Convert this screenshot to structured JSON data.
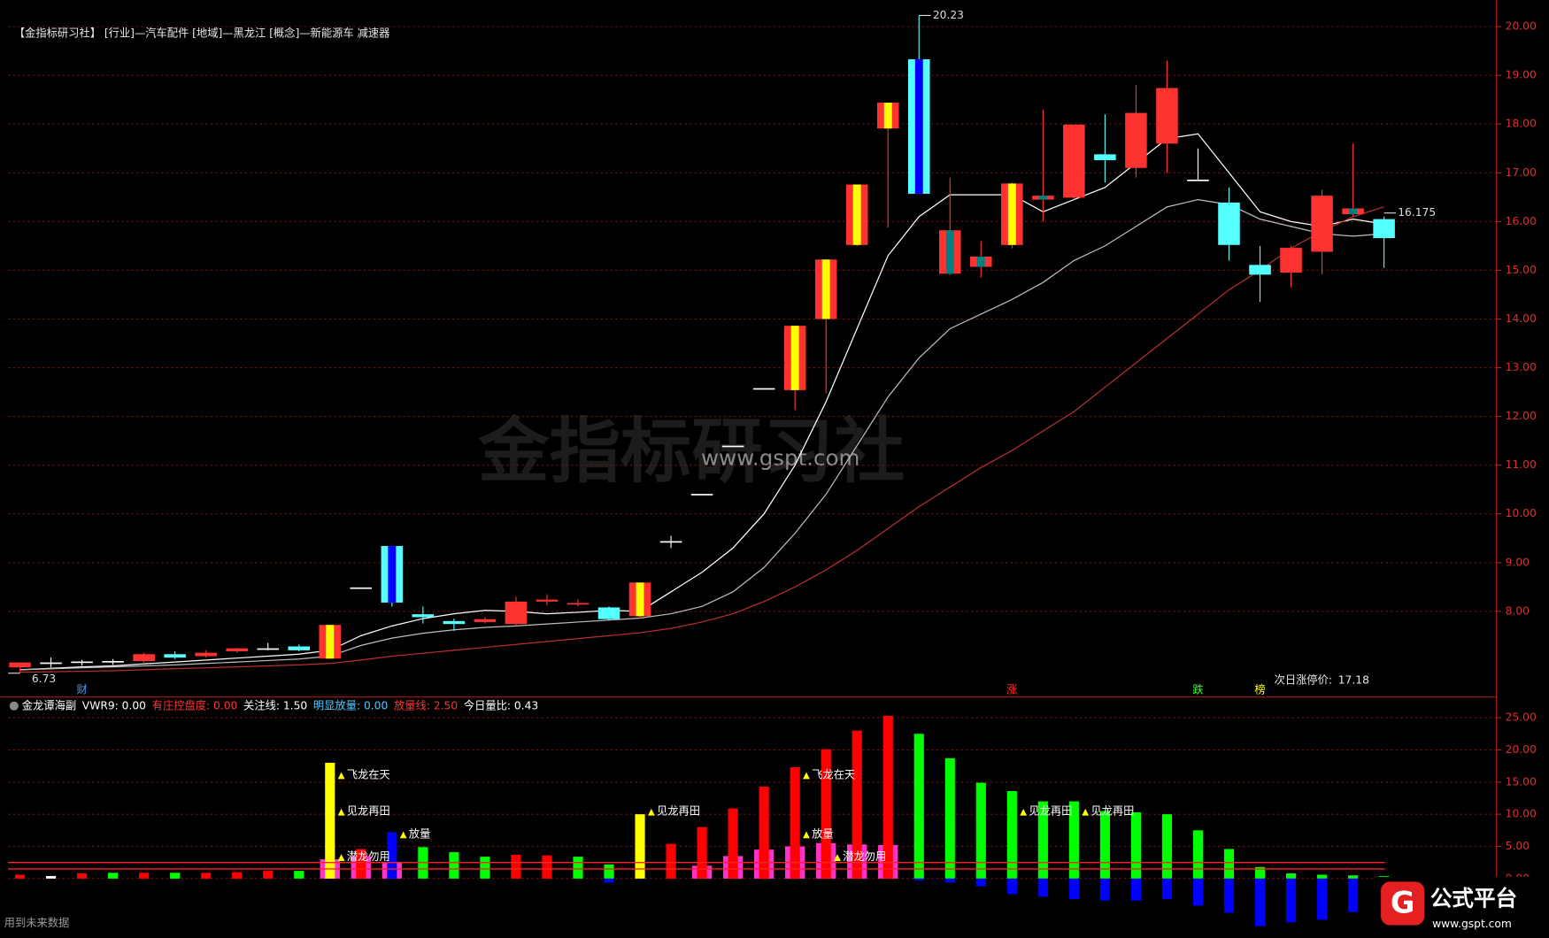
{
  "chart_data": [
    {
      "type": "candlestick",
      "title": "【金指标研习社】 [行业]—汽车配件 [地域]—黑龙江 [概念]—新能源车 减速器",
      "open": [
        6.85,
        6.95,
        6.95,
        6.97,
        6.98,
        7.12,
        7.08,
        7.18,
        7.24,
        7.28,
        7.03,
        8.49,
        9.34,
        7.94,
        7.8,
        7.78,
        7.74,
        8.2,
        8.14,
        8.08,
        7.9,
        9.44,
        10.41,
        11.4,
        12.58,
        12.54,
        14.0,
        15.52,
        17.91,
        19.33,
        15.82,
        15.28,
        15.52,
        16.53,
        16.49,
        17.38,
        17.1,
        17.6,
        16.86,
        16.39,
        15.11,
        14.95,
        15.38,
        16.27,
        16.05
      ],
      "high": [
        6.95,
        7.05,
        7.0,
        7.02,
        7.15,
        7.18,
        7.2,
        7.25,
        7.35,
        7.32,
        7.72,
        8.49,
        9.34,
        8.1,
        7.85,
        7.88,
        8.3,
        8.35,
        8.25,
        8.1,
        8.59,
        9.55,
        10.41,
        11.4,
        12.58,
        13.86,
        15.22,
        16.76,
        18.44,
        20.23,
        16.9,
        15.6,
        16.8,
        18.3,
        17.99,
        18.2,
        18.8,
        19.3,
        17.5,
        16.7,
        15.5,
        15.5,
        16.65,
        17.6,
        16.1
      ],
      "low": [
        6.73,
        6.85,
        6.88,
        6.9,
        6.95,
        7.02,
        7.05,
        7.15,
        7.2,
        7.18,
        7.03,
        8.49,
        8.1,
        7.75,
        7.6,
        7.75,
        7.7,
        8.12,
        8.1,
        7.82,
        7.85,
        9.3,
        10.41,
        11.4,
        12.58,
        12.13,
        12.48,
        15.5,
        15.88,
        16.57,
        14.9,
        14.85,
        15.45,
        16.0,
        16.45,
        16.8,
        16.9,
        17.0,
        16.86,
        15.2,
        14.35,
        14.65,
        14.92,
        16.1,
        15.05
      ],
      "close": [
        6.95,
        6.95,
        6.97,
        6.98,
        7.12,
        7.05,
        7.15,
        7.24,
        7.24,
        7.2,
        7.72,
        8.49,
        8.18,
        7.88,
        7.74,
        7.84,
        8.2,
        8.24,
        8.17,
        7.84,
        8.59,
        9.44,
        10.41,
        11.4,
        12.58,
        13.86,
        15.22,
        16.76,
        18.44,
        16.57,
        14.93,
        15.07,
        16.78,
        16.45,
        17.99,
        17.26,
        18.23,
        18.74,
        16.86,
        15.52,
        14.91,
        15.46,
        16.53,
        16.15,
        15.66
      ],
      "colors": [
        "#ff3232",
        "#ffffff",
        "#ffffff",
        "#ffffff",
        "#ff3232",
        "#54ffff",
        "#ff3232",
        "#ff3232",
        "#ffffff",
        "#54ffff",
        "#ff3232",
        "#ffffff",
        "#54ffff",
        "#54ffff",
        "#54ffff",
        "#ff3232",
        "#ff3232",
        "#ff3232",
        "#ff3232",
        "#54ffff",
        "#ff3232",
        "#ffffff",
        "#ffffff",
        "#ffffff",
        "#ffffff",
        "#ff3232",
        "#ff3232",
        "#ff3232",
        "#ff3232",
        "#54ffff",
        "#ff3232",
        "#ff3232",
        "#ff3232",
        "#ff3232",
        "#ff3232",
        "#54ffff",
        "#ff3232",
        "#ff3232",
        "#ffffff",
        "#54ffff",
        "#54ffff",
        "#ff3232",
        "#ff3232",
        "#ff3232",
        "#54ffff"
      ],
      "stripes": [
        null,
        null,
        null,
        null,
        null,
        null,
        null,
        null,
        null,
        null,
        "#ffff00",
        null,
        "#0000ff",
        null,
        null,
        null,
        null,
        null,
        null,
        null,
        "#ffff00",
        null,
        null,
        null,
        null,
        "#ffff00",
        "#ffff00",
        "#ffff00",
        "#ffff00",
        "#0000ff",
        "#008080",
        "#008080",
        "#ffff00",
        "#008080",
        null,
        null,
        null,
        null,
        null,
        null,
        null,
        null,
        null,
        "#008080",
        null
      ],
      "lines": [
        {
          "color": "#ffffff",
          "values": [
            6.8,
            6.83,
            6.86,
            6.88,
            6.92,
            6.96,
            7.0,
            7.04,
            7.08,
            7.12,
            7.2,
            7.5,
            7.7,
            7.85,
            7.95,
            8.02,
            8.0,
            7.95,
            7.98,
            8.02,
            8.0,
            8.4,
            8.8,
            9.3,
            10.0,
            11.0,
            12.3,
            13.8,
            15.3,
            16.1,
            16.55,
            16.55,
            16.55,
            16.2,
            16.45,
            16.7,
            17.2,
            17.7,
            17.8,
            17.0,
            16.2,
            16.0,
            15.9,
            16.05,
            15.95
          ]
        },
        {
          "color": "#bdbdbd",
          "values": [
            6.8,
            6.82,
            6.84,
            6.86,
            6.88,
            6.9,
            6.93,
            6.96,
            6.99,
            7.02,
            7.08,
            7.3,
            7.45,
            7.55,
            7.62,
            7.67,
            7.7,
            7.74,
            7.78,
            7.82,
            7.86,
            7.95,
            8.1,
            8.4,
            8.9,
            9.6,
            10.4,
            11.4,
            12.4,
            13.2,
            13.8,
            14.1,
            14.4,
            14.75,
            15.2,
            15.5,
            15.9,
            16.3,
            16.45,
            16.35,
            16.05,
            15.9,
            15.75,
            15.7,
            15.75
          ]
        },
        {
          "color": "#b83030",
          "values": [
            6.75,
            6.76,
            6.77,
            6.78,
            6.8,
            6.82,
            6.84,
            6.86,
            6.88,
            6.9,
            6.93,
            7.0,
            7.08,
            7.14,
            7.2,
            7.26,
            7.32,
            7.38,
            7.44,
            7.5,
            7.56,
            7.65,
            7.78,
            7.95,
            8.2,
            8.5,
            8.85,
            9.25,
            9.7,
            10.15,
            10.55,
            10.95,
            11.3,
            11.7,
            12.1,
            12.6,
            13.1,
            13.6,
            14.1,
            14.6,
            15.0,
            15.45,
            15.8,
            16.1,
            16.3
          ]
        }
      ],
      "annotations": [
        {
          "value": 20.23,
          "index": 29
        },
        {
          "value": 6.73,
          "index": 0
        },
        {
          "value": 16.175,
          "index": 44
        }
      ],
      "markers": [
        {
          "text": "财",
          "index": 2,
          "color": "#3aa0ff"
        },
        {
          "text": "涨",
          "index": 32,
          "color": "#ff3232"
        },
        {
          "text": "跌",
          "index": 38,
          "color": "#33ff33"
        },
        {
          "text": "榜",
          "index": 40,
          "color": "#ffff00"
        }
      ],
      "note": {
        "text": "次日涨停价:",
        "value": 17.18
      },
      "ylim": [
        6.26,
        20.385
      ],
      "yticks": [
        {
          "value": 8,
          "label": "8.00"
        },
        {
          "value": 9,
          "label": "9.00"
        },
        {
          "value": 10,
          "label": "10.00"
        },
        {
          "value": 11,
          "label": "11.00"
        },
        {
          "value": 12,
          "label": "12.00"
        },
        {
          "value": 13,
          "label": "13.00"
        },
        {
          "value": 14,
          "label": "14.00"
        },
        {
          "value": 15,
          "label": "15.00"
        },
        {
          "value": 16,
          "label": "16.00"
        },
        {
          "value": 17,
          "label": "17.00"
        },
        {
          "value": 18,
          "label": "18.00"
        },
        {
          "value": 19,
          "label": "19.00"
        },
        {
          "value": 20,
          "label": "20.00"
        }
      ],
      "grid": true
    },
    {
      "type": "bar",
      "header": [
        {
          "text": "金龙谭海副",
          "color": "#ffffff"
        },
        {
          "text": "VWR9: 0.00",
          "color": "#ffffff"
        },
        {
          "text": "有庄控盘度: 0.00",
          "color": "#ff3232"
        },
        {
          "text": "关注线: 1.50",
          "color": "#ffffff"
        },
        {
          "text": "明显放量: 0.00",
          "color": "#54c8ff"
        },
        {
          "text": "放量线: 2.50",
          "color": "#ff3232"
        },
        {
          "text": "今日量比: 0.43",
          "color": "#ffffff"
        }
      ],
      "series": [
        {
          "color": "#ff33cc",
          "values": [
            null,
            null,
            null,
            null,
            null,
            null,
            null,
            null,
            null,
            null,
            3.0,
            3.5,
            2.5,
            null,
            null,
            null,
            null,
            null,
            null,
            null,
            null,
            null,
            2.0,
            3.5,
            4.5,
            5.0,
            5.5,
            5.3,
            5.2,
            null,
            null,
            null,
            null,
            null,
            null,
            null,
            null,
            null,
            null,
            null,
            null,
            null,
            null,
            null,
            null
          ]
        },
        {
          "colors": [
            "#ff0000",
            "#ffffff",
            "#ff0000",
            "#00ff00",
            "#ff0000",
            "#00ff00",
            "#ff0000",
            "#ff0000",
            "#ff0000",
            "#00ff00",
            "#ffff00",
            "#ff0000",
            "#0000ff",
            "#00ff00",
            "#00ff00",
            "#00ff00",
            "#ff0000",
            "#ff0000",
            "#00ff00",
            "#00ff00",
            "#ffff00",
            "#ff0000",
            "#ff0000",
            "#ff0000",
            "#ff0000",
            "#ff0000",
            "#ff0000",
            "#ff0000",
            "#ff0000",
            "#00ff00",
            "#00ff00",
            "#00ff00",
            "#00ff00",
            "#00ff00",
            "#00ff00",
            "#00ff00",
            "#00ff00",
            "#00ff00",
            "#00ff00",
            "#00ff00",
            "#00ff00",
            "#00ff00",
            "#00ff00",
            "#00ff00",
            "#00ff00"
          ],
          "values": [
            0.6,
            0.4,
            0.8,
            0.9,
            0.9,
            0.9,
            0.9,
            1.0,
            1.2,
            1.2,
            18.0,
            4.6,
            7.2,
            4.9,
            4.1,
            3.4,
            3.7,
            3.6,
            3.4,
            2.2,
            10.0,
            5.4,
            8.0,
            10.9,
            14.3,
            17.3,
            20.1,
            23.0,
            25.3,
            22.5,
            18.7,
            14.9,
            13.6,
            12.0,
            12.0,
            10.5,
            10.3,
            10.0,
            7.5,
            4.6,
            1.8,
            0.8,
            0.6,
            0.5,
            0.4
          ]
        },
        {
          "color": "#0000ff",
          "values": [
            null,
            null,
            null,
            null,
            null,
            null,
            null,
            null,
            null,
            null,
            null,
            null,
            null,
            null,
            null,
            null,
            null,
            null,
            null,
            -0.6,
            null,
            null,
            null,
            null,
            null,
            null,
            null,
            null,
            null,
            -0.3,
            -0.6,
            -1.2,
            -2.4,
            -2.8,
            -3.2,
            -3.4,
            -3.4,
            -3.2,
            -4.2,
            -5.3,
            -7.4,
            -6.8,
            -6.4,
            -5.2,
            -6.0
          ]
        }
      ],
      "ref_lines": [
        1.5,
        2.5
      ],
      "signals": [
        {
          "text": "飞龙在天",
          "indices": [
            10,
            25
          ]
        },
        {
          "text": "见龙再田",
          "indices": [
            10,
            20,
            32,
            34
          ]
        },
        {
          "text": "放量",
          "indices": [
            12,
            25
          ]
        },
        {
          "text": "潜龙勿用",
          "indices": [
            10,
            26
          ]
        }
      ],
      "ylim": [
        -7.7,
        27.9
      ],
      "yticks": [
        {
          "value": 0,
          "label": "0.00"
        },
        {
          "value": 5,
          "label": "5.00"
        },
        {
          "value": 10,
          "label": "10.00"
        },
        {
          "value": 15,
          "label": "15.00"
        },
        {
          "value": 20,
          "label": "20.00"
        },
        {
          "value": 25,
          "label": "25.00"
        }
      ],
      "grid": true
    }
  ],
  "watermark": {
    "brand": "金指标研习社",
    "url": "www.gspt.com"
  },
  "footer": "用到未来数据",
  "logo": {
    "mark": "G",
    "name": "公式平台",
    "url": "www.gspt.com"
  }
}
